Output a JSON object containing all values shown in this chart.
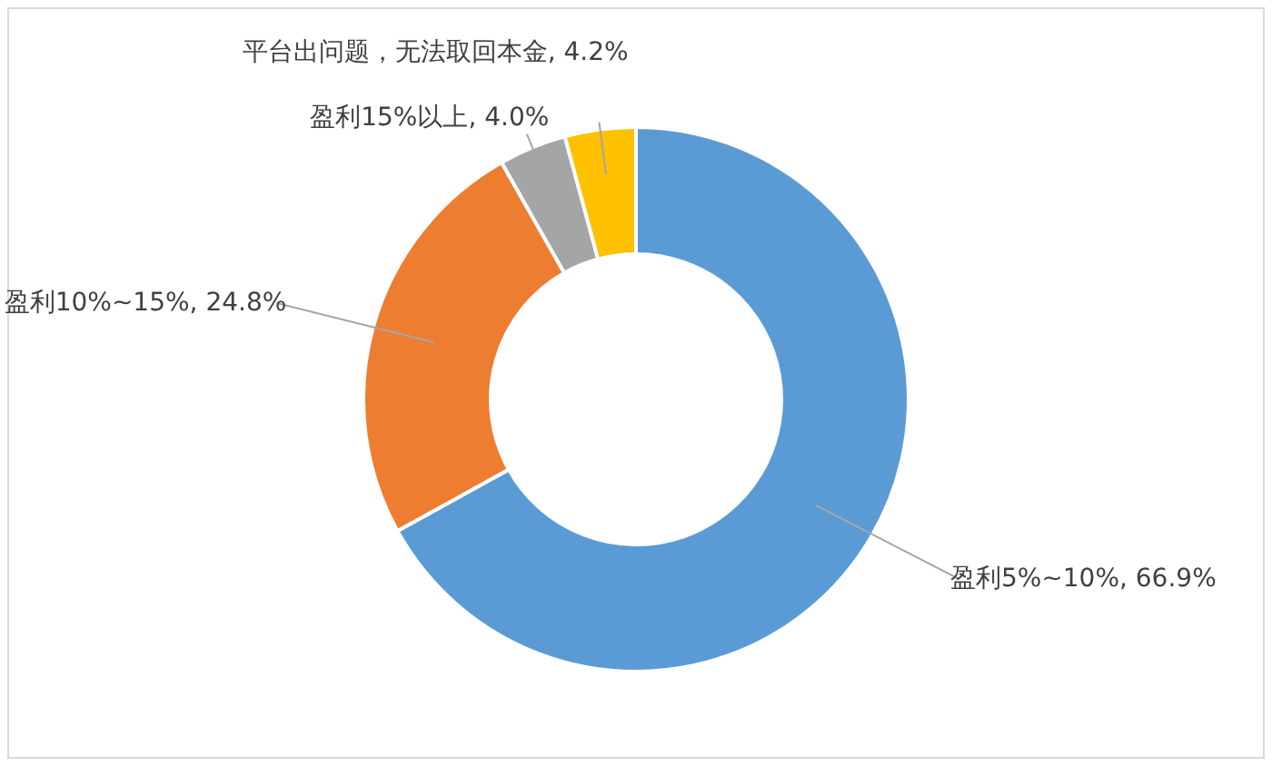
{
  "chart_data": {
    "type": "donut",
    "categories": [
      "盈利5%~10%",
      "盈利10%~15%",
      "盈利15%以上",
      "平台出问题，无法取回本金"
    ],
    "values": [
      66.9,
      24.8,
      4.0,
      4.2
    ],
    "value_labels": [
      "66.9%",
      "24.8%",
      "4.0%",
      "4.2%"
    ],
    "colors": [
      "#5b9bd5",
      "#ed7d31",
      "#a5a5a5",
      "#ffc000"
    ]
  }
}
